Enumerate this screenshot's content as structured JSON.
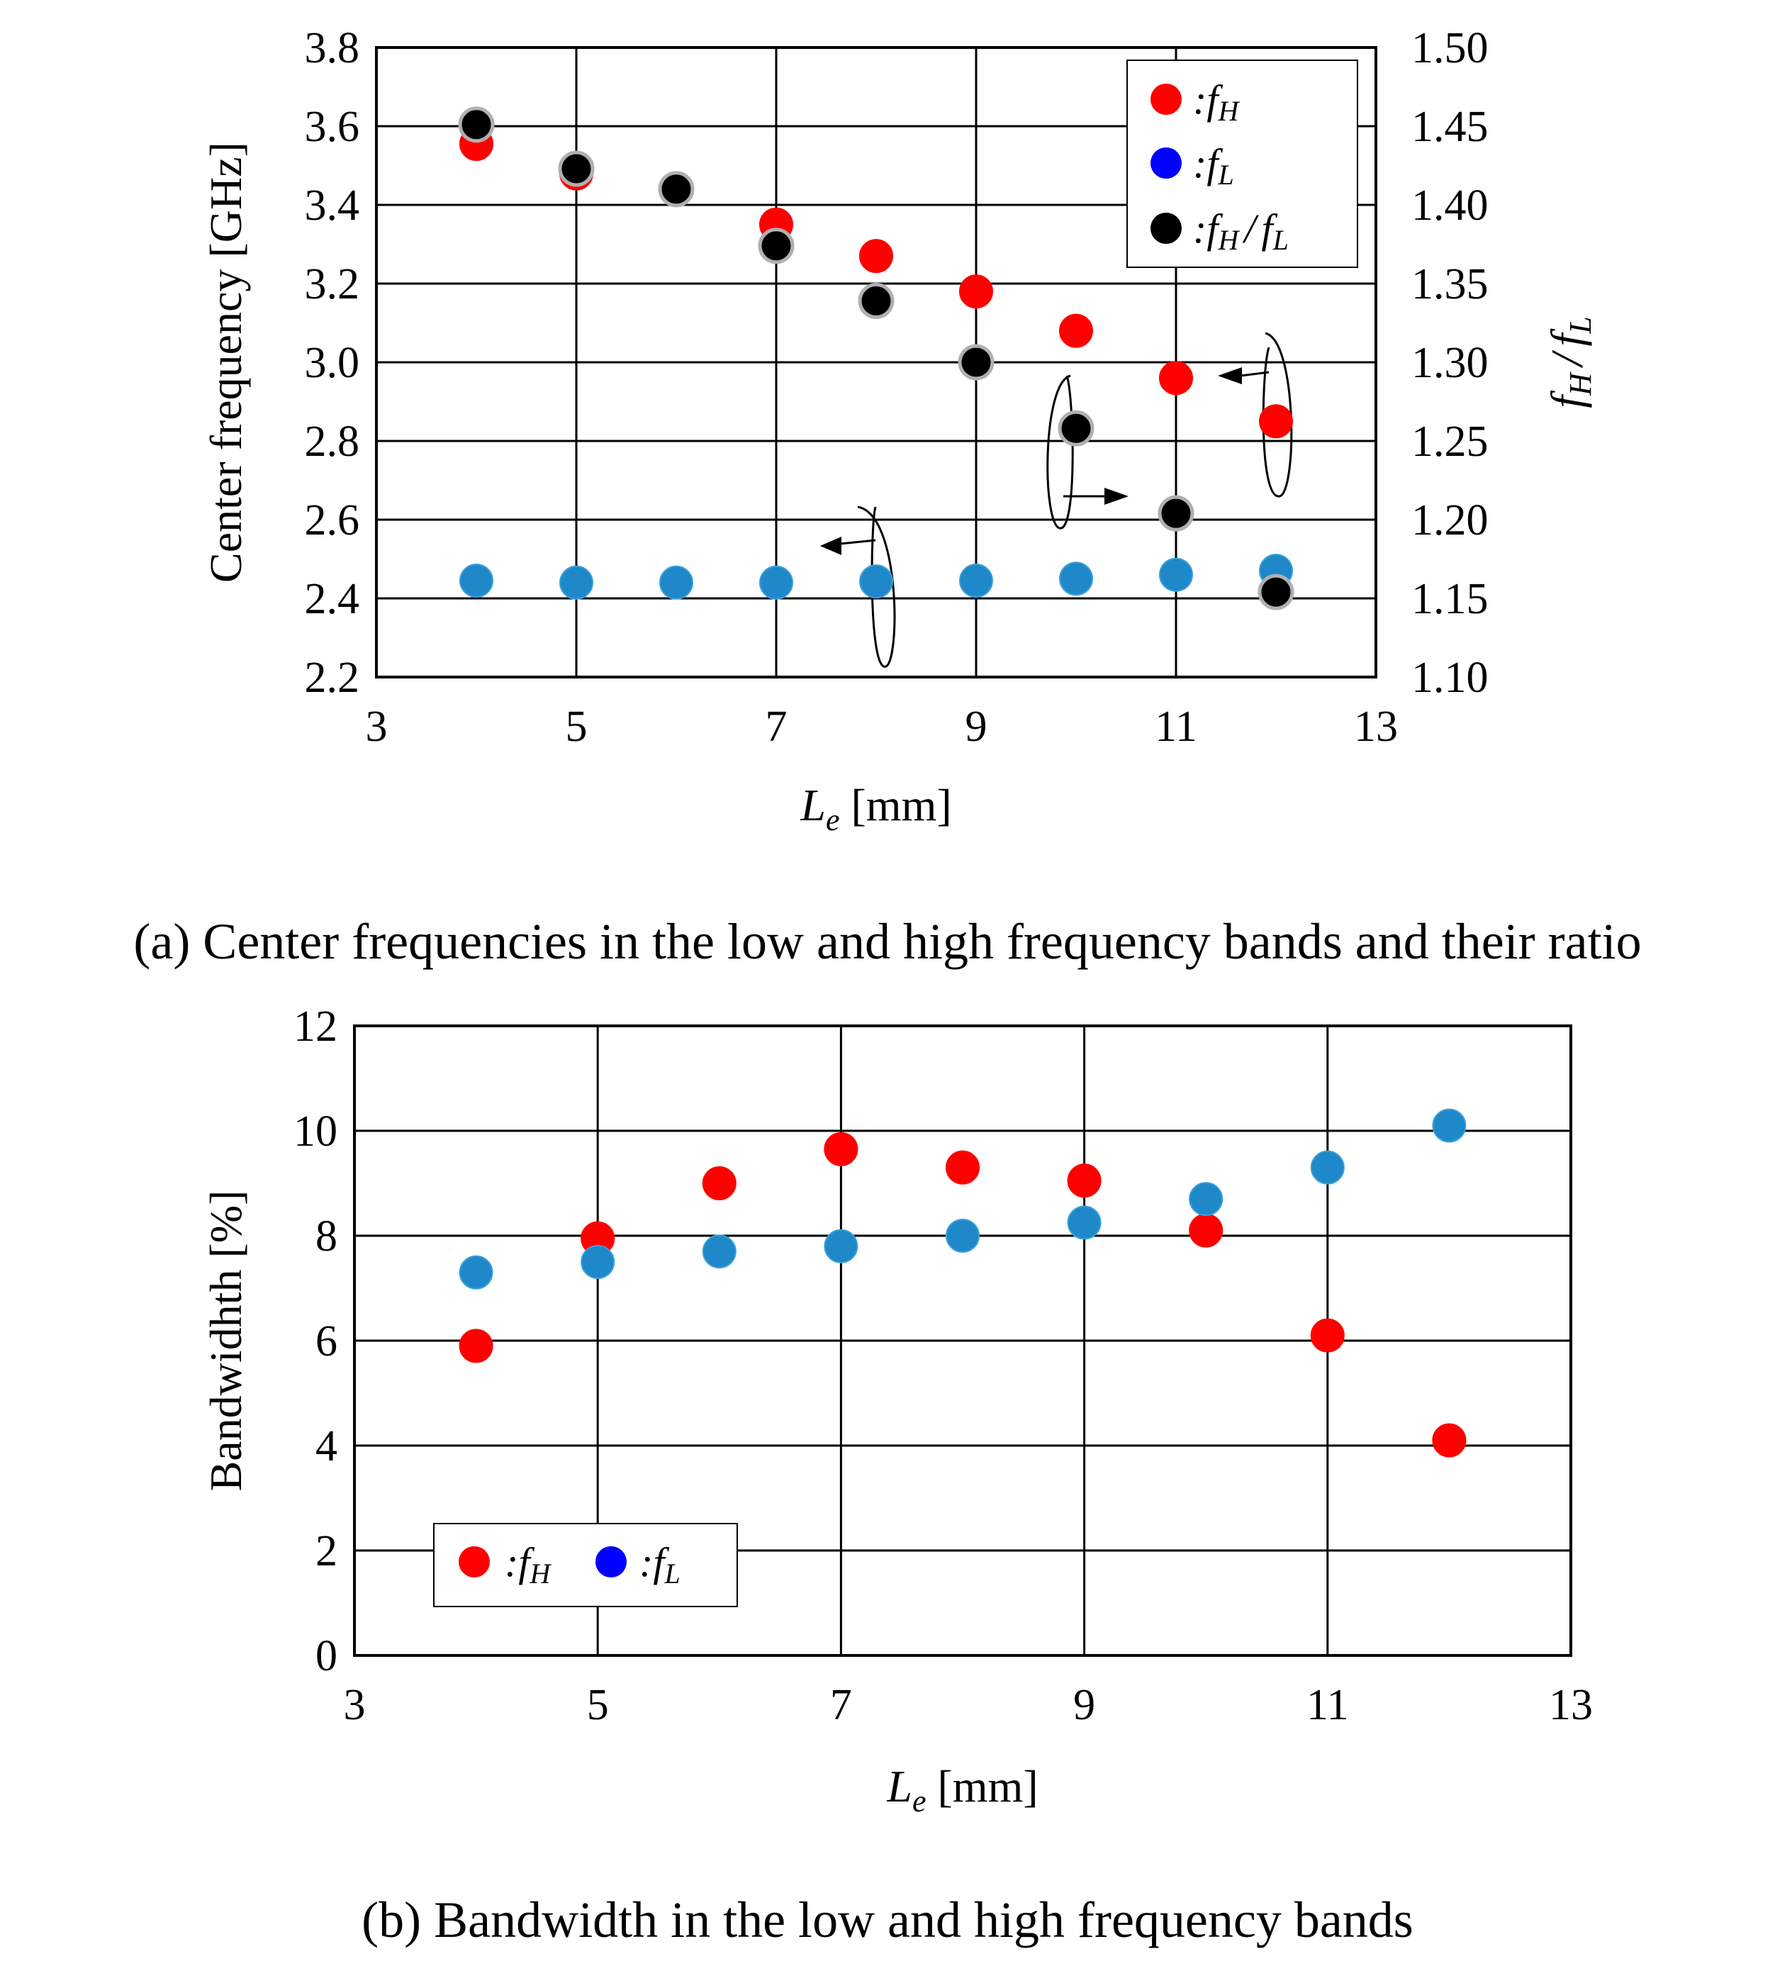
{
  "colors": {
    "red": "#ff0000",
    "blue_point": "#1e88c8",
    "blue_legend": "#0000ff",
    "black": "#000000",
    "grey_edge": "#b0b0b0",
    "grid": "#000000"
  },
  "chart_data": [
    {
      "id": "a",
      "type": "scatter",
      "caption": "(a) Center frequencies in the low and high frequency bands and their ratio",
      "xlabel": {
        "var": "L",
        "sub": "e",
        "unit": "[mm]"
      },
      "ylabel": "Center frequency [GHz]",
      "y2label": {
        "num": "f",
        "num_sub": "H",
        "sep": "/",
        "den": "f",
        "den_sub": "L"
      },
      "xlim": [
        3,
        13
      ],
      "ylim": [
        2.2,
        3.8
      ],
      "y2lim": [
        1.1,
        1.5
      ],
      "xticks": [
        "3",
        "5",
        "7",
        "9",
        "11",
        "13"
      ],
      "yticks": [
        "2.2",
        "2.4",
        "2.6",
        "2.8",
        "3.0",
        "3.2",
        "3.4",
        "3.6",
        "3.8"
      ],
      "y2ticks": [
        "1.10",
        "1.15",
        "1.20",
        "1.25",
        "1.30",
        "1.35",
        "1.40",
        "1.45",
        "1.50"
      ],
      "x": [
        4,
        5,
        6,
        7,
        8,
        9,
        10,
        11,
        12
      ],
      "series": [
        {
          "name": "fH",
          "axis": "left",
          "color": "red",
          "values": [
            3.555,
            3.48,
            3.44,
            3.35,
            3.27,
            3.18,
            3.08,
            2.96,
            2.85
          ]
        },
        {
          "name": "fL",
          "axis": "left",
          "color": "blue_point",
          "values": [
            2.445,
            2.44,
            2.44,
            2.44,
            2.443,
            2.445,
            2.45,
            2.46,
            2.47
          ]
        },
        {
          "name": "fH/fL",
          "axis": "right",
          "color": "black",
          "values": [
            1.451,
            1.423,
            1.41,
            1.374,
            1.339,
            1.3,
            1.258,
            1.204,
            1.154
          ]
        }
      ],
      "legend": [
        {
          "marker": "red",
          "prefix": ":",
          "var": "f",
          "sub": "H"
        },
        {
          "marker": "blue_legend",
          "prefix": ":",
          "var": "f",
          "sub": "L"
        },
        {
          "marker": "black",
          "prefix": ":",
          "var": "f",
          "sub": "H",
          "var2": "f",
          "sub2": "L"
        }
      ],
      "legend_position": "top-right",
      "grid": true
    },
    {
      "id": "b",
      "type": "scatter",
      "caption": "(b) Bandwidth in the low and high frequency bands",
      "xlabel": {
        "var": "L",
        "sub": "e",
        "unit": "[mm]"
      },
      "ylabel": "Bandwidhth [%]",
      "xlim": [
        3,
        13
      ],
      "ylim": [
        0,
        12
      ],
      "xticks": [
        "3",
        "5",
        "7",
        "9",
        "11",
        "13"
      ],
      "yticks": [
        "0",
        "2",
        "4",
        "6",
        "8",
        "10",
        "12"
      ],
      "x": [
        4,
        5,
        6,
        7,
        8,
        9,
        10,
        11,
        12
      ],
      "series": [
        {
          "name": "fH",
          "color": "red",
          "values": [
            5.9,
            7.95,
            9.0,
            9.65,
            9.3,
            9.05,
            8.1,
            6.1,
            4.1
          ]
        },
        {
          "name": "fL",
          "color": "blue_point",
          "values": [
            7.3,
            7.5,
            7.7,
            7.8,
            8.0,
            8.25,
            8.7,
            9.3,
            10.1
          ]
        }
      ],
      "legend": [
        {
          "marker": "red",
          "prefix": ":",
          "var": "f",
          "sub": "H"
        },
        {
          "marker": "blue_legend",
          "prefix": ":",
          "var": "f",
          "sub": "L"
        }
      ],
      "legend_position": "bottom-left",
      "grid": true
    }
  ]
}
